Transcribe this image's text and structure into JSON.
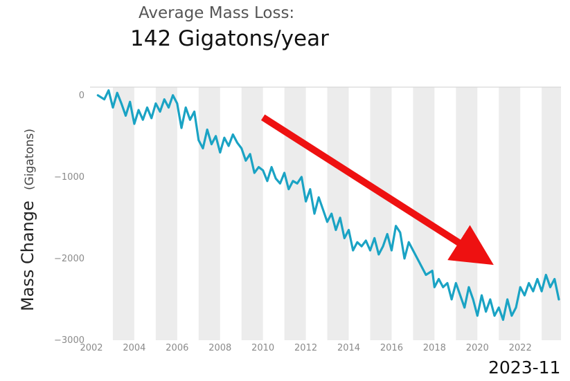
{
  "chart_data": {
    "type": "line",
    "title": "Average Mass Loss:",
    "subtitle": "142 Gigatons/year",
    "ylabel_main": "Mass Change",
    "ylabel_unit": "(Gigatons)",
    "date_label": "2023-11",
    "xlim": [
      2002.0,
      2023.9
    ],
    "ylim": [
      -3000,
      100
    ],
    "yticks": [
      0,
      -1000,
      -2000,
      -3000
    ],
    "ytick_labels": [
      "0",
      "−1000",
      "−2000",
      "−3000"
    ],
    "xticks": [
      2002,
      2004,
      2006,
      2008,
      2010,
      2012,
      2014,
      2016,
      2018,
      2020,
      2022
    ],
    "xtick_labels": [
      "2002",
      "2004",
      "2006",
      "2008",
      "2010",
      "2012",
      "2014",
      "2016",
      "2018",
      "2020",
      "2022"
    ],
    "shaded_years": [
      2003,
      2005,
      2007,
      2009,
      2011,
      2013,
      2015,
      2017,
      2019,
      2021,
      2023
    ],
    "series": [
      {
        "color": "#1aa3c4",
        "x": [
          2002.3,
          2002.6,
          2002.8,
          2003.0,
          2003.2,
          2003.4,
          2003.6,
          2003.8,
          2004.0,
          2004.2,
          2004.4,
          2004.6,
          2004.8,
          2005.0,
          2005.2,
          2005.4,
          2005.6,
          2005.8,
          2006.0,
          2006.2,
          2006.4,
          2006.6,
          2006.8,
          2007.0,
          2007.2,
          2007.4,
          2007.6,
          2007.8,
          2008.0,
          2008.2,
          2008.4,
          2008.6,
          2008.8,
          2009.0,
          2009.2,
          2009.4,
          2009.6,
          2009.8,
          2010.0,
          2010.2,
          2010.4,
          2010.6,
          2010.8,
          2011.0,
          2011.2,
          2011.4,
          2011.6,
          2011.8,
          2012.0,
          2012.2,
          2012.4,
          2012.6,
          2012.8,
          2013.0,
          2013.2,
          2013.4,
          2013.6,
          2013.8,
          2014.0,
          2014.2,
          2014.4,
          2014.6,
          2014.8,
          2015.0,
          2015.2,
          2015.4,
          2015.6,
          2015.8,
          2016.0,
          2016.2,
          2016.4,
          2016.6,
          2016.8,
          2017.0,
          2017.3,
          2017.6,
          2017.9,
          2018.0,
          2018.2,
          2018.4,
          2018.6,
          2018.8,
          2019.0,
          2019.2,
          2019.4,
          2019.6,
          2019.8,
          2020.0,
          2020.2,
          2020.4,
          2020.6,
          2020.8,
          2021.0,
          2021.2,
          2021.4,
          2021.6,
          2021.8,
          2022.0,
          2022.2,
          2022.4,
          2022.6,
          2022.8,
          2023.0,
          2023.2,
          2023.4,
          2023.6,
          2023.8
        ],
        "y": [
          0,
          -50,
          60,
          -150,
          30,
          -100,
          -250,
          -80,
          -350,
          -180,
          -300,
          -150,
          -280,
          -100,
          -200,
          -50,
          -150,
          0,
          -100,
          -400,
          -150,
          -300,
          -200,
          -550,
          -650,
          -420,
          -600,
          -500,
          -700,
          -520,
          -620,
          -480,
          -580,
          -650,
          -800,
          -720,
          -950,
          -880,
          -920,
          -1050,
          -880,
          -1020,
          -1080,
          -950,
          -1150,
          -1050,
          -1080,
          -1000,
          -1300,
          -1150,
          -1450,
          -1250,
          -1400,
          -1550,
          -1450,
          -1650,
          -1500,
          -1750,
          -1650,
          -1900,
          -1800,
          -1850,
          -1780,
          -1900,
          -1750,
          -1950,
          -1850,
          -1700,
          -1900,
          -1600,
          -1680,
          -2000,
          -1800,
          -1900,
          -2050,
          -2200,
          -2150,
          -2350,
          -2250,
          -2350,
          -2300,
          -2500,
          -2300,
          -2450,
          -2600,
          -2350,
          -2500,
          -2700,
          -2450,
          -2650,
          -2500,
          -2700,
          -2600,
          -2750,
          -2500,
          -2700,
          -2600,
          -2350,
          -2450,
          -2300,
          -2400,
          -2250,
          -2400,
          -2200,
          -2350,
          -2250,
          -2500
        ]
      }
    ]
  },
  "annotation": {
    "arrow_color": "#ee1111",
    "from": [
      2010.0,
      -270
    ],
    "to": [
      2020.0,
      -1950
    ]
  }
}
